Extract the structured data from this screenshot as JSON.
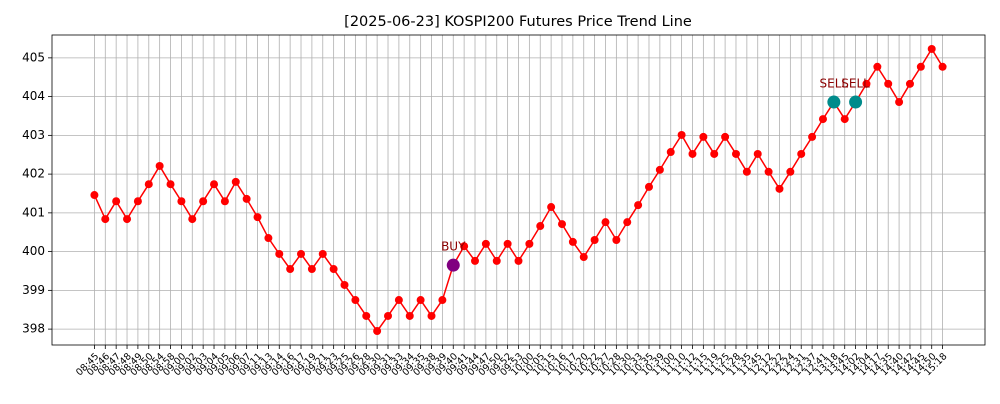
{
  "chart_data": {
    "type": "line",
    "title": "[2025-06-23] KOSPI200 Futures Price Trend Line",
    "categories": [
      "08:45",
      "08:46",
      "08:47",
      "08:48",
      "08:49",
      "08:50",
      "08:54",
      "08:58",
      "09:00",
      "09:02",
      "09:03",
      "09:04",
      "09:05",
      "09:06",
      "09:07",
      "09:11",
      "09:13",
      "09:14",
      "09:16",
      "09:17",
      "09:19",
      "09:21",
      "09:23",
      "09:25",
      "09:26",
      "09:28",
      "09:30",
      "09:31",
      "09:33",
      "09:34",
      "09:35",
      "09:38",
      "09:39",
      "09:40",
      "09:41",
      "09:44",
      "09:47",
      "09:50",
      "09:52",
      "09:53",
      "10:00",
      "10:05",
      "10:15",
      "10:16",
      "10:17",
      "10:20",
      "10:22",
      "10:27",
      "10:28",
      "10:30",
      "10:33",
      "10:35",
      "10:39",
      "11:00",
      "11:10",
      "11:12",
      "11:15",
      "11:19",
      "11:25",
      "11:28",
      "11:35",
      "11:45",
      "12:12",
      "12:22",
      "12:24",
      "12:31",
      "12:37",
      "12:41",
      "13:18",
      "13:45",
      "14:02",
      "14:04",
      "14:17",
      "14:35",
      "14:40",
      "14:42",
      "14:45",
      "14:50",
      "15:18"
    ],
    "series": [
      {
        "name": "Price",
        "color": "#ff0000",
        "values": [
          401.46,
          400.84,
          401.3,
          400.84,
          401.3,
          401.74,
          402.21,
          401.74,
          401.3,
          400.84,
          401.3,
          401.74,
          401.3,
          401.8,
          401.36,
          400.89,
          400.35,
          399.94,
          399.55,
          399.94,
          399.55,
          399.94,
          399.55,
          399.14,
          398.75,
          398.34,
          397.95,
          398.34,
          398.75,
          398.34,
          398.75,
          398.34,
          398.75,
          399.65,
          400.14,
          399.76,
          400.2,
          399.76,
          400.2,
          399.76,
          400.2,
          400.66,
          401.15,
          400.71,
          400.25,
          399.86,
          400.3,
          400.76,
          400.3,
          400.76,
          401.2,
          401.67,
          402.11,
          402.57,
          403.01,
          402.52,
          402.96,
          402.52,
          402.96,
          402.52,
          402.06,
          402.52,
          402.06,
          401.62,
          402.06,
          402.52,
          402.96,
          403.42,
          403.86,
          403.42,
          403.86,
          404.33,
          404.77,
          404.33,
          403.86,
          404.33,
          404.77,
          405.23,
          404.77
        ]
      }
    ],
    "signals": [
      {
        "label": "BUY",
        "x": "09:40",
        "color": "#800080",
        "text_color": "#8b0000"
      },
      {
        "label": "SELL",
        "x": "13:18",
        "color": "#008b8b",
        "text_color": "#8b0000"
      },
      {
        "label": "SELL",
        "x": "14:02",
        "color": "#008b8b",
        "text_color": "#8b0000"
      }
    ],
    "xlim": [
      -3.9,
      81.9
    ],
    "ylim": [
      397.59,
      405.59
    ],
    "yticks": [
      398,
      399,
      400,
      401,
      402,
      403,
      404,
      405
    ],
    "grid": true
  }
}
